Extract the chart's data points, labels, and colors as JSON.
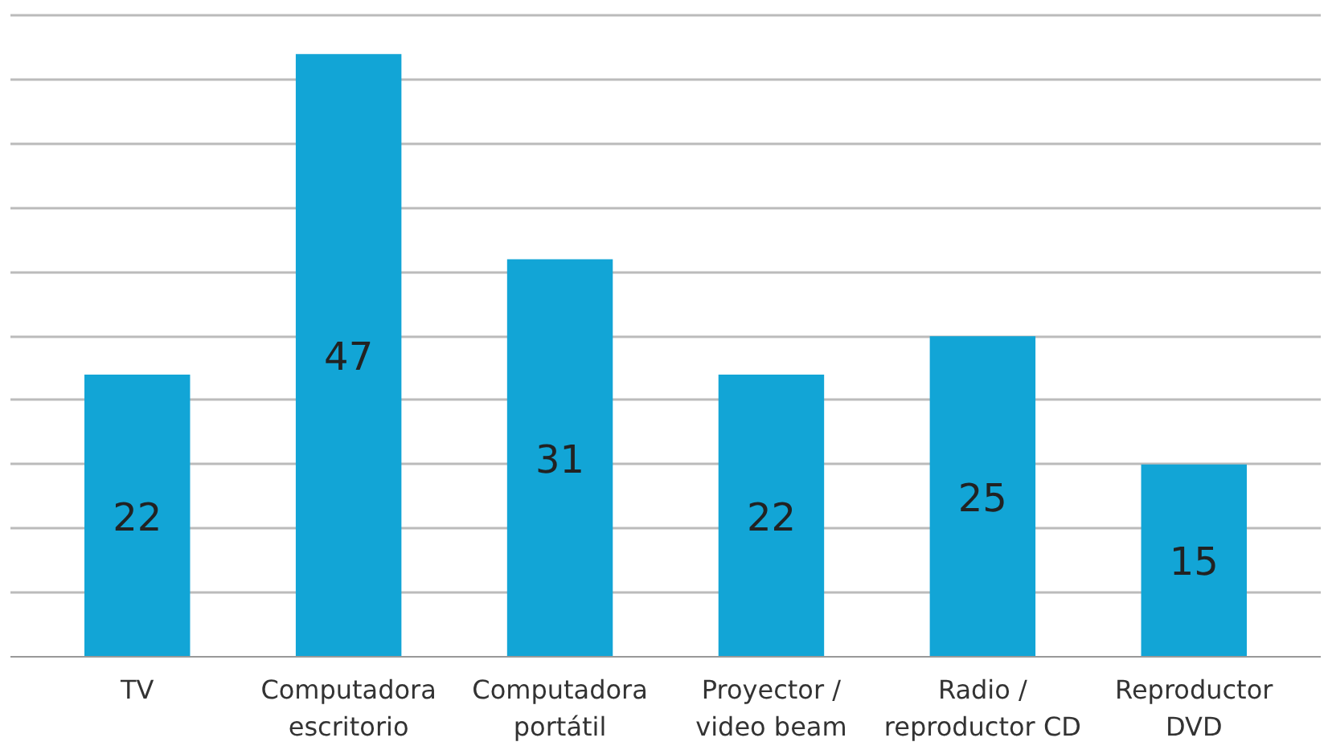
{
  "chart_data": {
    "type": "bar",
    "categories": [
      "TV",
      "Computadora\nescritorio",
      "Computadora\nportátil",
      "Proyector /\nvideo beam",
      "Radio /\nreproductor CD",
      "Reproductor\nDVD"
    ],
    "values": [
      22,
      47,
      31,
      22,
      25,
      15
    ],
    "color": "#12a5d6",
    "data_labels": true,
    "tick_labels": "x",
    "grid": "y"
  }
}
